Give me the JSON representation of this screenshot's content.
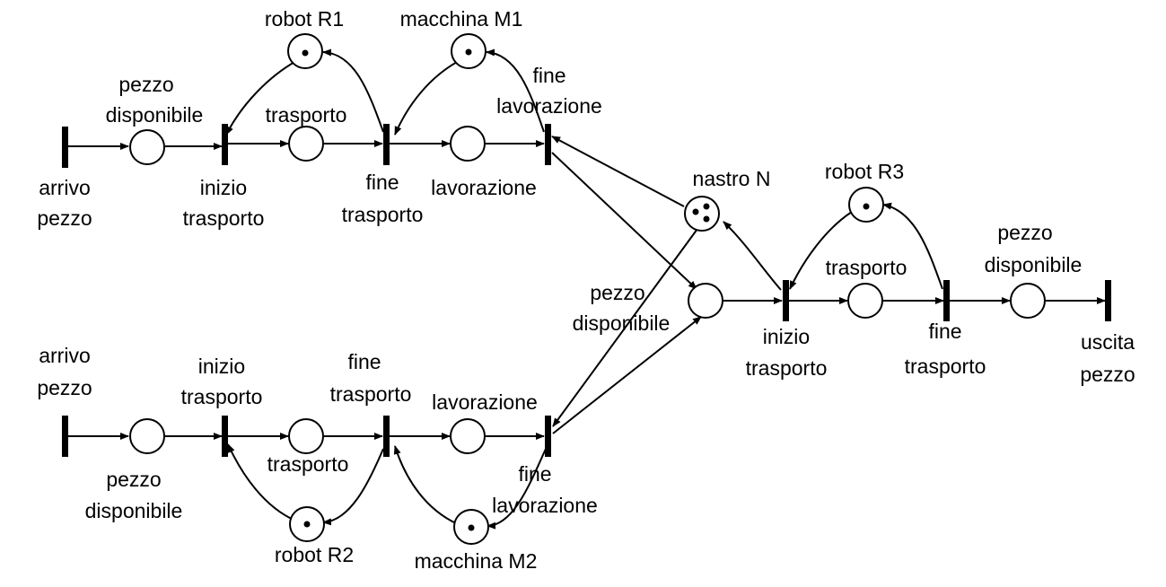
{
  "labels": {
    "robot_r1": "robot R1",
    "macchina_m1": "macchina M1",
    "pezzo1": "pezzo",
    "disponibile1": "disponibile",
    "trasporto1": "trasporto",
    "fine_top": "fine",
    "lavorazione_top": "lavorazione",
    "arrivo1": "arrivo",
    "pezzo_arrivo1": "pezzo",
    "inizio1": "inizio",
    "trasporto_inizio1": "trasporto",
    "fine_tr1": "fine",
    "trasporto_fine1": "trasporto",
    "lavorazione1": "lavorazione",
    "nastro": "nastro N",
    "robot_r3": "robot R3",
    "trasporto3": "trasporto",
    "pezzo3": "pezzo",
    "disponibile3": "disponibile",
    "pezzo_mid": "pezzo",
    "disponibile_mid": "disponibile",
    "inizio3": "inizio",
    "trasporto_inizio3": "trasporto",
    "fine3": "fine",
    "trasporto_fine3": "trasporto",
    "uscita": "uscita",
    "pezzo_uscita": "pezzo",
    "arrivo2": "arrivo",
    "pezzo_arrivo2": "pezzo",
    "inizio2": "inizio",
    "trasporto_inizio2": "trasporto",
    "fine_tr2": "fine",
    "trasporto_fine2": "trasporto",
    "lavorazione2": "lavorazione",
    "pezzo2": "pezzo",
    "disponibile2": "disponibile",
    "trasporto2": "trasporto",
    "fine_bot": "fine",
    "lavorazione_bot": "lavorazione",
    "robot_r2": "robot R2",
    "macchina_m2": "macchina M2"
  },
  "tokens": {
    "robot_r1": 1,
    "macchina_m1": 1,
    "nastro": 3,
    "robot_r3": 1,
    "robot_r2": 1,
    "macchina_m2": 1
  },
  "colors": {
    "stroke": "#000000",
    "background": "#ffffff"
  }
}
